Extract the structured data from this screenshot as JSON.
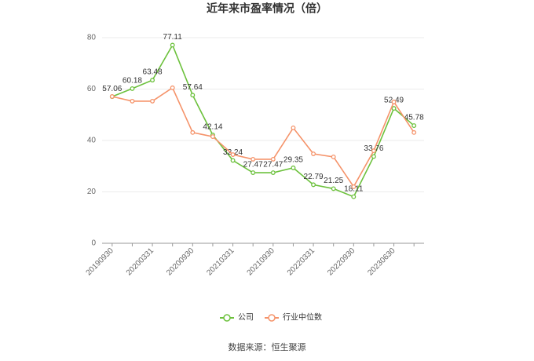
{
  "chart_data": {
    "type": "line",
    "title": "近年来市盈率情况（倍）",
    "categories": [
      "20190930",
      null,
      "20200331",
      null,
      "20200930",
      null,
      "20210331",
      null,
      "20210930",
      null,
      "20220331",
      null,
      "20220930",
      null,
      "20230630",
      null
    ],
    "series": [
      {
        "name": "公司",
        "color": "#6cc13c",
        "values": [
          57.06,
          60.18,
          63.48,
          77.11,
          57.64,
          42.14,
          32.24,
          27.47,
          27.47,
          29.35,
          22.79,
          21.25,
          18.11,
          33.76,
          52.49,
          45.78
        ],
        "data_labels": true
      },
      {
        "name": "行业中位数",
        "color": "#f5936a",
        "values": [
          57.1,
          55.3,
          55.3,
          60.5,
          43.1,
          41.5,
          34.5,
          32.7,
          32.7,
          44.9,
          34.8,
          33.6,
          22.0,
          36.0,
          55.0,
          43.1
        ],
        "data_labels": false
      }
    ],
    "ylim": [
      0,
      80
    ],
    "yticks": [
      0,
      20,
      40,
      60,
      80
    ],
    "grid": true,
    "legend": "bottom",
    "source": "数据来源：恒生聚源"
  }
}
